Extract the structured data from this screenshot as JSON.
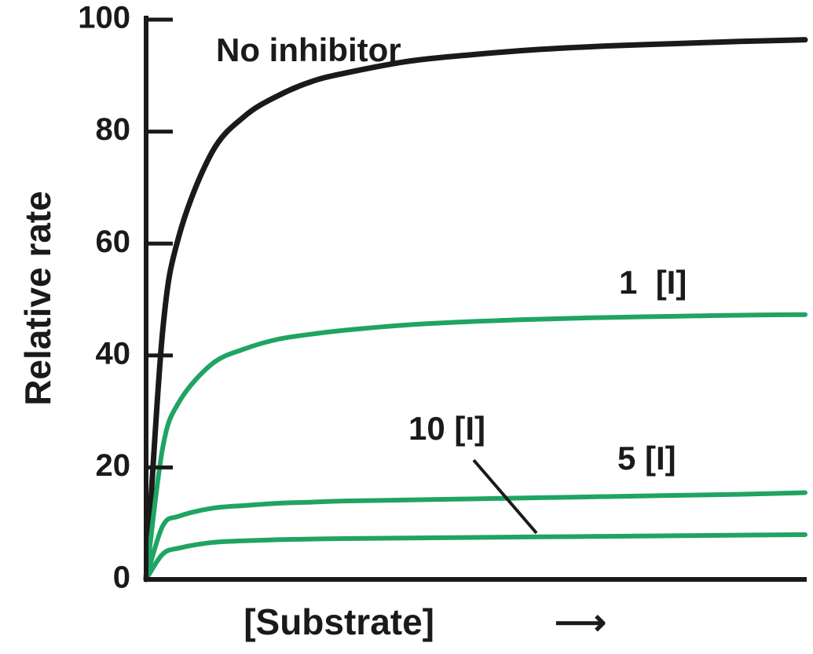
{
  "chart_data": {
    "type": "line",
    "xlabel": "[Substrate]",
    "ylabel": "Relative rate",
    "ylim": [
      0,
      100
    ],
    "y_ticks": [
      0,
      20,
      40,
      60,
      80,
      100
    ],
    "x_ticks_shown": false,
    "grid": false,
    "legend": "inline labels",
    "x": [
      0,
      0.25,
      0.5,
      1,
      1.5,
      2,
      2.5,
      3,
      4,
      5,
      6,
      7,
      8,
      9,
      10
    ],
    "series": [
      {
        "name": "No inhibitor",
        "color": "#1a1a1a",
        "values": [
          0,
          44.2,
          61.4,
          76.3,
          82.8,
          86.4,
          88.9,
          90.4,
          92.6,
          93.8,
          94.7,
          95.3,
          95.7,
          96.1,
          96.4
        ]
      },
      {
        "name": "1  [I]",
        "color": "#1fa463",
        "values": [
          0,
          23.4,
          31.7,
          38.5,
          41.2,
          42.9,
          43.8,
          44.5,
          45.5,
          46.1,
          46.5,
          46.8,
          47.0,
          47.2,
          47.3
        ]
      },
      {
        "name": "5 [I]",
        "color": "#1fa463",
        "values": [
          0,
          9.5,
          11.3,
          12.7,
          13.2,
          13.6,
          13.8,
          14.0,
          14.2,
          14.4,
          14.6,
          14.8,
          15.0,
          15.2,
          15.5
        ]
      },
      {
        "name": "10 [I]",
        "color": "#1fa463",
        "values": [
          0,
          4.5,
          5.6,
          6.6,
          6.9,
          7.1,
          7.2,
          7.3,
          7.4,
          7.5,
          7.6,
          7.7,
          7.8,
          7.9,
          8.0
        ]
      }
    ],
    "annotations": {
      "arrow_glyph": "⟶"
    }
  }
}
